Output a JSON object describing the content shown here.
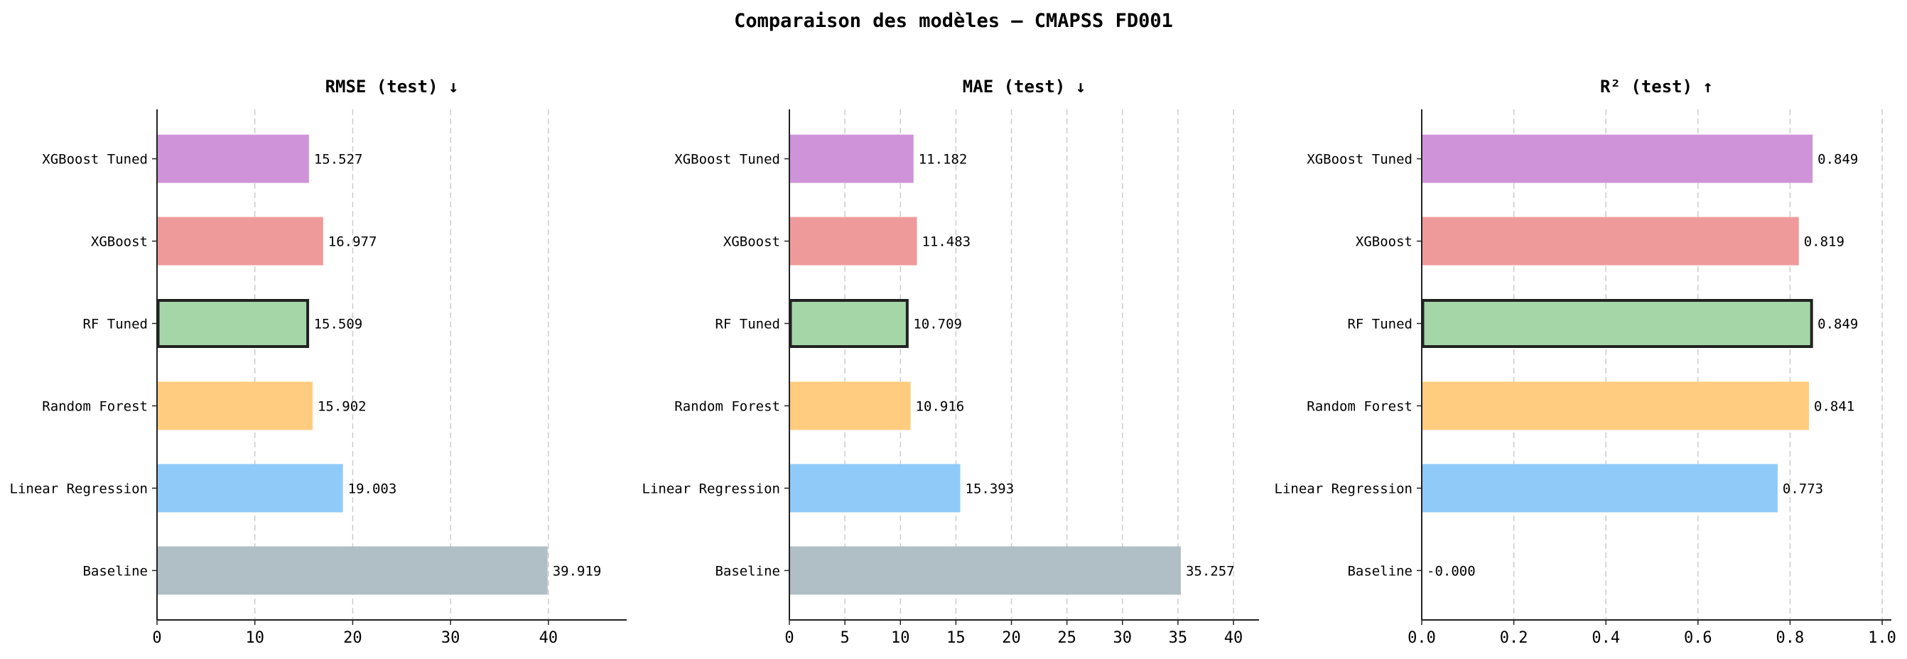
{
  "suptitle": "Comparaison des modèles — CMAPSS FD001",
  "chart_data": [
    {
      "type": "bar",
      "orientation": "horizontal",
      "title": "RMSE (test) ↓",
      "categories": [
        "Baseline",
        "Linear Regression",
        "Random Forest",
        "RF Tuned",
        "XGBoost",
        "XGBoost Tuned"
      ],
      "values": [
        39.919,
        19.003,
        15.902,
        15.509,
        16.977,
        15.527
      ],
      "value_labels": [
        "39.919",
        "19.003",
        "15.902",
        "15.509",
        "16.977",
        "15.527"
      ],
      "xlim": [
        0,
        48
      ],
      "xticks": [
        0,
        10,
        20,
        30,
        40
      ],
      "xtick_labels": [
        "0",
        "10",
        "20",
        "30",
        "40"
      ],
      "grid": "x-dashed",
      "highlight": "RF Tuned"
    },
    {
      "type": "bar",
      "orientation": "horizontal",
      "title": "MAE (test) ↓",
      "categories": [
        "Baseline",
        "Linear Regression",
        "Random Forest",
        "RF Tuned",
        "XGBoost",
        "XGBoost Tuned"
      ],
      "values": [
        35.257,
        15.393,
        10.916,
        10.709,
        11.483,
        11.182
      ],
      "value_labels": [
        "35.257",
        "15.393",
        "10.916",
        "10.709",
        "11.483",
        "11.182"
      ],
      "xlim": [
        0,
        42.3
      ],
      "xticks": [
        0,
        5,
        10,
        15,
        20,
        25,
        30,
        35,
        40
      ],
      "xtick_labels": [
        "0",
        "5",
        "10",
        "15",
        "20",
        "25",
        "30",
        "35",
        "40"
      ],
      "grid": "x-dashed",
      "highlight": "RF Tuned"
    },
    {
      "type": "bar",
      "orientation": "horizontal",
      "title": "R² (test) ↑",
      "categories": [
        "Baseline",
        "Linear Regression",
        "Random Forest",
        "RF Tuned",
        "XGBoost",
        "XGBoost Tuned"
      ],
      "values": [
        -0.0,
        0.773,
        0.841,
        0.849,
        0.819,
        0.849
      ],
      "value_labels": [
        "-0.000",
        "0.773",
        "0.841",
        "0.849",
        "0.819",
        "0.849"
      ],
      "xlim": [
        0,
        1.02
      ],
      "xticks": [
        0,
        0.2,
        0.4,
        0.6,
        0.8,
        1.0
      ],
      "xtick_labels": [
        "0.0",
        "0.2",
        "0.4",
        "0.6",
        "0.8",
        "1.0"
      ],
      "grid": "x-dashed",
      "highlight": "RF Tuned"
    }
  ],
  "colors": {
    "Baseline": "#b0bec5",
    "Linear Regression": "#90caf9",
    "Random Forest": "#ffcc80",
    "RF Tuned": "#a5d6a7",
    "XGBoost": "#ef9a9a",
    "XGBoost Tuned": "#ce93d8",
    "highlight_edge": "#222222",
    "grid": "#cccccc"
  }
}
